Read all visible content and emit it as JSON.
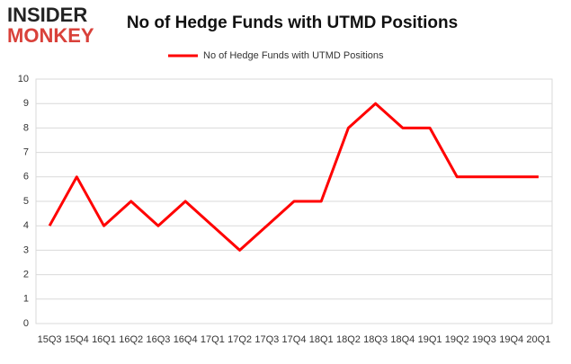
{
  "logo": {
    "line1": "INSIDER",
    "line2": "MONKEY"
  },
  "chart_data": {
    "type": "line",
    "title": "No of Hedge Funds with UTMD Positions",
    "categories": [
      "15Q3",
      "15Q4",
      "16Q1",
      "16Q2",
      "16Q3",
      "16Q4",
      "17Q1",
      "17Q2",
      "17Q3",
      "17Q4",
      "18Q1",
      "18Q2",
      "18Q3",
      "18Q4",
      "19Q1",
      "19Q2",
      "19Q3",
      "19Q4",
      "20Q1"
    ],
    "series": [
      {
        "name": "No of Hedge Funds with UTMD Positions",
        "color": "#ff0000",
        "values": [
          4,
          6,
          4,
          5,
          4,
          5,
          4,
          3,
          4,
          5,
          5,
          8,
          9,
          8,
          8,
          6,
          6,
          6,
          6
        ]
      }
    ],
    "ylim": [
      0,
      10
    ],
    "yticks": [
      0,
      1,
      2,
      3,
      4,
      5,
      6,
      7,
      8,
      9,
      10
    ],
    "grid": true,
    "legend": "top"
  }
}
